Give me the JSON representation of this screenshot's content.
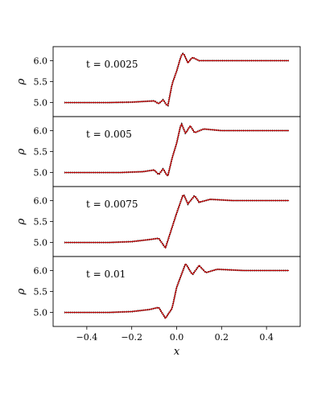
{
  "chart_data": [
    {
      "type": "line",
      "annotation": "t = 0.0025",
      "ylabel": "ρ",
      "xlim": [
        -0.55,
        0.55
      ],
      "ylim": [
        4.78,
        6.22
      ],
      "yticks": [
        "5.0",
        "5.5",
        "6.0"
      ],
      "yticks_values": [
        5.0,
        5.5,
        6.0
      ],
      "series": [
        {
          "color": "#000000",
          "style": "dotted-markers",
          "x": [
            -0.5,
            -0.3,
            -0.2,
            -0.1,
            -0.08,
            -0.06,
            -0.04,
            -0.02,
            0.0,
            0.02,
            0.03,
            0.05,
            0.07,
            0.1,
            0.2,
            0.5
          ],
          "y": [
            5.0,
            5.0,
            5.01,
            5.04,
            4.97,
            5.07,
            4.9,
            5.45,
            5.75,
            6.12,
            6.18,
            5.95,
            6.08,
            6.0,
            6.0,
            6.0
          ]
        },
        {
          "color": "#c00000",
          "style": "line",
          "x": [
            -0.5,
            -0.3,
            -0.2,
            -0.1,
            -0.08,
            -0.06,
            -0.04,
            -0.02,
            0.0,
            0.02,
            0.03,
            0.05,
            0.07,
            0.1,
            0.2,
            0.5
          ],
          "y": [
            5.0,
            5.0,
            5.01,
            5.04,
            4.97,
            5.07,
            4.9,
            5.45,
            5.75,
            6.12,
            6.18,
            5.95,
            6.08,
            6.0,
            6.0,
            6.0
          ]
        }
      ]
    },
    {
      "type": "line",
      "annotation": "t = 0.005",
      "ylabel": "ρ",
      "xlim": [
        -0.55,
        0.55
      ],
      "ylim": [
        4.78,
        6.22
      ],
      "yticks": [
        "5.0",
        "5.5",
        "6.0"
      ],
      "yticks_values": [
        5.0,
        5.5,
        6.0
      ],
      "series": [
        {
          "color": "#000000",
          "style": "dotted-markers",
          "x": [
            -0.5,
            -0.25,
            -0.15,
            -0.1,
            -0.08,
            -0.06,
            -0.04,
            -0.02,
            0.0,
            0.02,
            0.04,
            0.06,
            0.08,
            0.12,
            0.2,
            0.5
          ],
          "y": [
            5.0,
            5.0,
            5.02,
            5.06,
            4.95,
            5.09,
            4.9,
            5.35,
            5.7,
            6.18,
            5.93,
            6.12,
            5.95,
            6.04,
            6.0,
            6.0
          ]
        },
        {
          "color": "#c00000",
          "style": "line",
          "x": [
            -0.5,
            -0.25,
            -0.15,
            -0.1,
            -0.08,
            -0.06,
            -0.04,
            -0.02,
            0.0,
            0.02,
            0.04,
            0.06,
            0.08,
            0.12,
            0.2,
            0.5
          ],
          "y": [
            5.0,
            5.0,
            5.02,
            5.06,
            4.95,
            5.09,
            4.9,
            5.35,
            5.7,
            6.18,
            5.93,
            6.12,
            5.95,
            6.04,
            6.0,
            6.0
          ]
        }
      ]
    },
    {
      "type": "line",
      "annotation": "t = 0.0075",
      "ylabel": "ρ",
      "xlim": [
        -0.55,
        0.55
      ],
      "ylim": [
        4.78,
        6.22
      ],
      "yticks": [
        "5.0",
        "5.5",
        "6.0"
      ],
      "yticks_values": [
        5.0,
        5.5,
        6.0
      ],
      "series": [
        {
          "color": "#000000",
          "style": "dotted-markers",
          "x": [
            -0.5,
            -0.3,
            -0.2,
            -0.12,
            -0.08,
            -0.05,
            -0.03,
            0.0,
            0.03,
            0.05,
            0.08,
            0.1,
            0.15,
            0.25,
            0.5
          ],
          "y": [
            5.0,
            5.0,
            5.02,
            5.07,
            5.1,
            4.87,
            5.2,
            5.7,
            6.16,
            5.92,
            6.12,
            5.96,
            6.03,
            6.0,
            6.0
          ]
        },
        {
          "color": "#c00000",
          "style": "line",
          "x": [
            -0.5,
            -0.3,
            -0.2,
            -0.12,
            -0.08,
            -0.05,
            -0.03,
            0.0,
            0.03,
            0.05,
            0.08,
            0.1,
            0.15,
            0.25,
            0.5
          ],
          "y": [
            5.0,
            5.0,
            5.02,
            5.07,
            5.1,
            4.87,
            5.2,
            5.7,
            6.16,
            5.92,
            6.12,
            5.96,
            6.03,
            6.0,
            6.0
          ]
        }
      ]
    },
    {
      "type": "line",
      "annotation": "t = 0.01",
      "ylabel": "ρ",
      "xlabel": "x",
      "xlim": [
        -0.55,
        0.55
      ],
      "ylim": [
        4.78,
        6.22
      ],
      "xticks": [
        "−0.4",
        "−0.2",
        "0.0",
        "0.2",
        "0.4"
      ],
      "xticks_values": [
        -0.4,
        -0.2,
        0.0,
        0.2,
        0.4
      ],
      "yticks": [
        "5.0",
        "5.5",
        "6.0"
      ],
      "yticks_values": [
        5.0,
        5.5,
        6.0
      ],
      "series": [
        {
          "color": "#000000",
          "style": "dotted-markers",
          "x": [
            -0.5,
            -0.3,
            -0.2,
            -0.12,
            -0.08,
            -0.05,
            -0.02,
            0.0,
            0.04,
            0.07,
            0.1,
            0.13,
            0.18,
            0.3,
            0.5
          ],
          "y": [
            5.0,
            5.0,
            5.02,
            5.07,
            5.12,
            4.86,
            5.1,
            5.6,
            6.17,
            5.9,
            6.12,
            5.95,
            6.03,
            6.0,
            6.0
          ]
        },
        {
          "color": "#c00000",
          "style": "line",
          "x": [
            -0.5,
            -0.3,
            -0.2,
            -0.12,
            -0.08,
            -0.05,
            -0.02,
            0.0,
            0.04,
            0.07,
            0.1,
            0.13,
            0.18,
            0.3,
            0.5
          ],
          "y": [
            5.0,
            5.0,
            5.02,
            5.07,
            5.12,
            4.86,
            5.1,
            5.6,
            6.17,
            5.9,
            6.12,
            5.95,
            6.03,
            6.0,
            6.0
          ]
        }
      ]
    }
  ]
}
